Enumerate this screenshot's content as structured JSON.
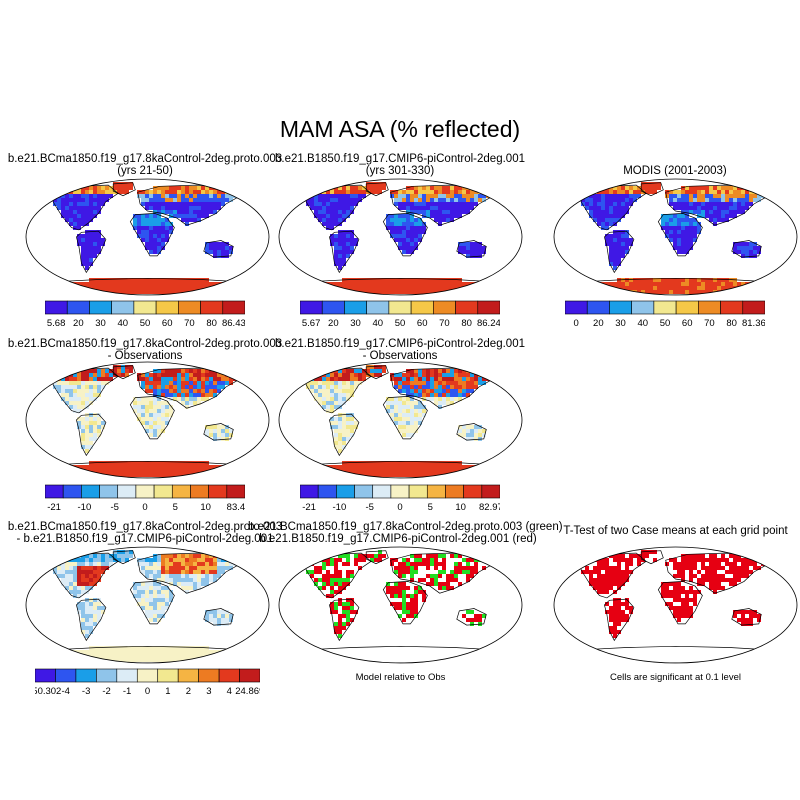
{
  "figure": {
    "title": "MAM ASA (% reflected)"
  },
  "colors": {
    "scale_abs": [
      "#3f18e5",
      "#2e55f0",
      "#1a9ee8",
      "#8fc4ea",
      "#f2e890",
      "#f5c848",
      "#ed8b24",
      "#e3391e",
      "#c21c1c"
    ],
    "scale_diff": [
      "#3f18e5",
      "#2e55f0",
      "#1a9ee8",
      "#8fc4ea",
      "#dcecf6",
      "#f7f2c6",
      "#f2e890",
      "#f5b443",
      "#ed7b22",
      "#e3391e",
      "#c21c1c"
    ],
    "sig_red": "#e60012",
    "sig_green": "#22dd22",
    "land_outline": "#000000"
  },
  "panels": [
    {
      "id": "r1c1",
      "title_line1": "b.e21.BCma1850.f19_g17.8kaControl-2deg.proto.003",
      "title_line2": "(yrs 21-50)",
      "kind": "abs",
      "colorbar_labels": [
        "5.68",
        "20",
        "30",
        "40",
        "50",
        "60",
        "70",
        "80",
        "86.43"
      ]
    },
    {
      "id": "r1c2",
      "title_line1": "b.e21.B1850.f19_g17.CMIP6-piControl-2deg.001",
      "title_line2": "(yrs 301-330)",
      "kind": "abs",
      "colorbar_labels": [
        "5.67",
        "20",
        "30",
        "40",
        "50",
        "60",
        "70",
        "80",
        "86.24"
      ]
    },
    {
      "id": "r1c3",
      "title_line1": "MODIS (2001-2003)",
      "title_line2": "",
      "kind": "abs",
      "colorbar_labels": [
        "0",
        "20",
        "30",
        "40",
        "50",
        "60",
        "70",
        "80",
        "81.36"
      ]
    },
    {
      "id": "r2c1",
      "title_line1": "b.e21.BCma1850.f19_g17.8kaControl-2deg.proto.003",
      "title_line2": "- Observations",
      "kind": "diff",
      "colorbar_labels": [
        "-21",
        "-10",
        "-5",
        "0",
        "5",
        "10",
        "83.4"
      ]
    },
    {
      "id": "r2c2",
      "title_line1": "b.e21.B1850.f19_g17.CMIP6-piControl-2deg.001",
      "title_line2": "- Observations",
      "kind": "diff",
      "colorbar_labels": [
        "-21",
        "-10",
        "-5",
        "0",
        "5",
        "10",
        "82.97"
      ]
    },
    {
      "id": "r3c1",
      "title_line1": "b.e21.BCma1850.f19_g17.8kaControl-2deg.proto.003",
      "title_line2": "- b.e21.B1850.f19_g17.CMIP6-piControl-2deg.001",
      "kind": "casediff",
      "colorbar_labels": [
        "-50.302",
        "-4",
        "-3",
        "-2",
        "-1",
        "0",
        "1",
        "2",
        "3",
        "4",
        "24.869"
      ]
    },
    {
      "id": "r3c2",
      "title_line1": "b.e21.BCma1850.f19_g17.8kaControl-2deg.proto.003 (green)",
      "title_line2": "b.e21.B1850.f19_g17.CMIP6-piControl-2deg.001 (red)",
      "kind": "relative",
      "caption": "Model relative to Obs"
    },
    {
      "id": "r3c3",
      "title_line1": "T-Test of two Case means at each grid point",
      "title_line2": "",
      "kind": "ttest",
      "caption": "Cells are significant at 0.1 level"
    }
  ]
}
